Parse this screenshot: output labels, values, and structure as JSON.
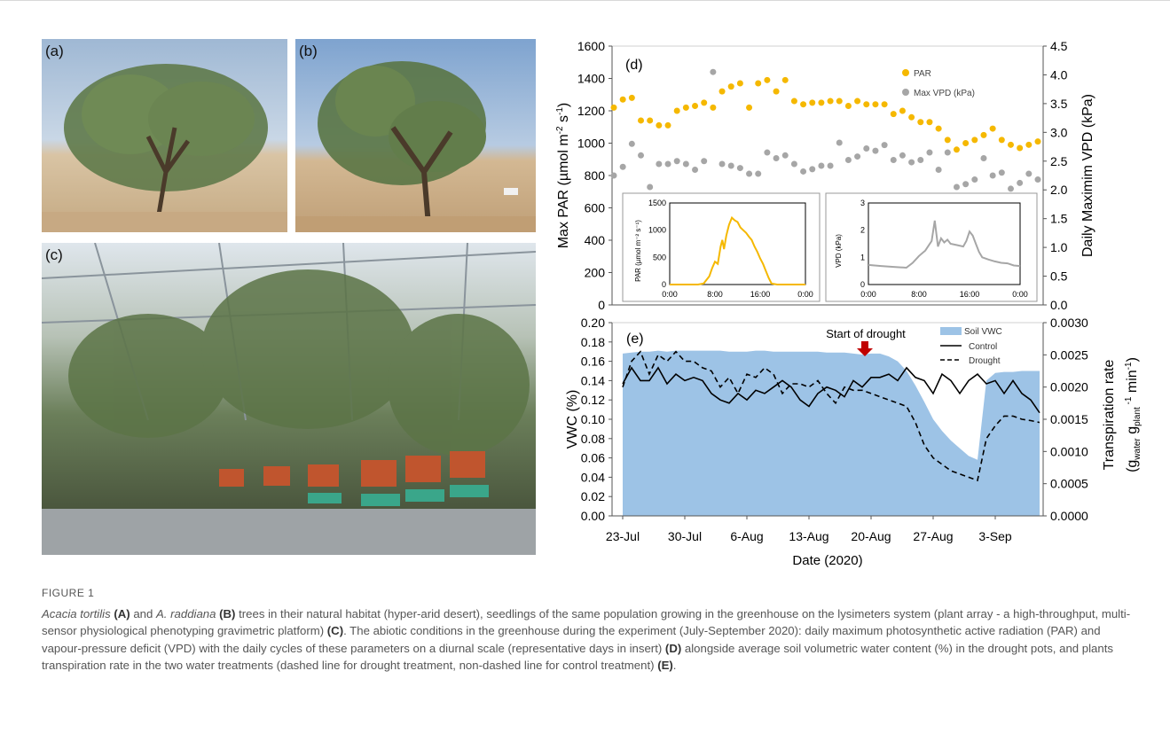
{
  "figure_label": "FIGURE 1",
  "caption": {
    "s1_italic": "Acacia tortilis",
    "s1_b1": "(A)",
    "s1_t2": " and ",
    "s1_italic2": "A. raddiana",
    "s1_b2": "(B)",
    "s1_t3": " trees in their natural habitat (hyper-arid desert), seedlings of the same population growing in the greenhouse on the lysimeters system (plant array - a high-throughput, multi-sensor physiological phenotyping gravimetric platform) ",
    "s1_b3": "(C)",
    "s1_t4": ". The abiotic conditions in the greenhouse during the experiment (July-September 2020): daily maximum photosynthetic active radiation (PAR) and vapour-pressure deficit (VPD) with the daily cycles of these parameters on a diurnal scale (representative days in insert) ",
    "s1_b4": "(D)",
    "s1_t5": " alongside average soil volumetric water content (%) in the drought pots, and plants transpiration rate in the two water treatments (dashed line for drought treatment, non-dashed line for control treatment) ",
    "s1_b5": "(E)",
    "s1_t6": "."
  },
  "photos": [
    {
      "label": "(a)",
      "description": "tree in natural habitat"
    },
    {
      "label": "(b)",
      "description": "tree in natural habitat"
    },
    {
      "label": "(c)",
      "description": "greenhouse seedlings on lysimeters"
    }
  ],
  "colors": {
    "par": "#f5b800",
    "vpd": "#a6a6a6",
    "vwc": "#9dc3e6",
    "line": "#000000",
    "axis": "#555555"
  },
  "chart_data": [
    {
      "panel": "(d)",
      "type": "scatter",
      "ylabel_left": "Max PAR (µmol m⁻² s⁻¹)",
      "ylabel_right": "Daily Maximim VPD (kPa)",
      "ylim_left": [
        0,
        1600
      ],
      "ylim_right": [
        0,
        4.5
      ],
      "yticks_left": [
        "0",
        "200",
        "400",
        "600",
        "800",
        "1000",
        "1200",
        "1400",
        "1600"
      ],
      "yticks_right": [
        "0.0",
        "0.5",
        "1.0",
        "1.5",
        "2.0",
        "2.5",
        "3.0",
        "3.5",
        "4.0",
        "4.5"
      ],
      "x": [
        0,
        1,
        2,
        3,
        4,
        5,
        6,
        7,
        8,
        9,
        10,
        11,
        12,
        13,
        14,
        15,
        16,
        17,
        18,
        19,
        20,
        21,
        22,
        23,
        24,
        25,
        26,
        27,
        28,
        29,
        30,
        31,
        32,
        33,
        34,
        35,
        36,
        37,
        38,
        39,
        40,
        41,
        42,
        43,
        44,
        45,
        46,
        47
      ],
      "series": [
        {
          "name": "PAR",
          "axis": "left",
          "values": [
            1220,
            1270,
            1280,
            1140,
            1140,
            1110,
            1110,
            1200,
            1220,
            1230,
            1250,
            1220,
            1320,
            1350,
            1370,
            1220,
            1370,
            1390,
            1320,
            1390,
            1260,
            1240,
            1250,
            1250,
            1260,
            1260,
            1230,
            1260,
            1240,
            1240,
            1240,
            1180,
            1200,
            1160,
            1130,
            1130,
            1090,
            1020,
            960,
            1000,
            1020,
            1050,
            1090,
            1020,
            990,
            970,
            990,
            1010
          ]
        },
        {
          "name": "Max VPD (kPa)",
          "axis": "right",
          "values": [
            2.25,
            2.4,
            2.8,
            2.6,
            2.05,
            2.45,
            2.45,
            2.5,
            2.45,
            2.35,
            2.5,
            4.05,
            2.45,
            2.42,
            2.38,
            2.28,
            2.28,
            2.65,
            2.55,
            2.6,
            2.45,
            2.32,
            2.36,
            2.42,
            2.42,
            2.82,
            2.52,
            2.58,
            2.72,
            2.68,
            2.78,
            2.52,
            2.6,
            2.48,
            2.52,
            2.65,
            2.35,
            2.65,
            2.05,
            2.1,
            2.18,
            2.55,
            2.25,
            2.3,
            2.02,
            2.12,
            2.28,
            2.18
          ]
        }
      ]
    },
    {
      "panel": "inset-par",
      "type": "line",
      "ylabel": "PAR (µmol m⁻² s⁻¹)",
      "xticks": [
        "0:00",
        "8:00",
        "16:00",
        "0:00"
      ],
      "yticks": [
        "0",
        "500",
        "1000",
        "1500"
      ],
      "ylim": [
        0,
        1500
      ],
      "x_hours": [
        0,
        5,
        6,
        7,
        7.5,
        8,
        8.5,
        9,
        9.3,
        9.6,
        10,
        10.5,
        11,
        11.5,
        12,
        12.5,
        13,
        13.5,
        14,
        14.5,
        15,
        15.5,
        16,
        16.5,
        17,
        17.5,
        18,
        19,
        24
      ],
      "values": [
        0,
        0,
        20,
        150,
        300,
        420,
        380,
        700,
        820,
        650,
        900,
        1100,
        1230,
        1180,
        1150,
        1050,
        1000,
        950,
        880,
        820,
        700,
        600,
        480,
        380,
        250,
        120,
        20,
        0,
        0
      ]
    },
    {
      "panel": "inset-vpd",
      "type": "line",
      "ylabel": "VPD (kPa)",
      "xticks": [
        "0:00",
        "8:00",
        "16:00",
        "0:00"
      ],
      "yticks": [
        "0",
        "1",
        "2",
        "3"
      ],
      "ylim": [
        0,
        3
      ],
      "x_hours": [
        0,
        2,
        4,
        6,
        7,
        8,
        9,
        10,
        10.5,
        11,
        11.5,
        12,
        12.5,
        13,
        14,
        15,
        15.5,
        16,
        16.5,
        17,
        17.5,
        18,
        19,
        20,
        21,
        22,
        23,
        24
      ],
      "values": [
        0.72,
        0.68,
        0.65,
        0.62,
        0.8,
        1.05,
        1.25,
        1.6,
        2.35,
        1.4,
        1.7,
        1.55,
        1.65,
        1.5,
        1.45,
        1.4,
        1.6,
        1.95,
        1.8,
        1.5,
        1.2,
        1.0,
        0.92,
        0.85,
        0.8,
        0.78,
        0.7,
        0.68
      ]
    },
    {
      "panel": "(e)",
      "type": "area",
      "xlabel": "Date (2020)",
      "ylabel_left": "VWC (%)",
      "ylabel_right": "Transpiration rate (gwater gplant⁻¹ min⁻¹)",
      "ylabel_right_parts": {
        "a": "Transpiration rate",
        "b1": "(g",
        "b_sub1": "water",
        "b2": " g",
        "b_sub2": "plant",
        "b_sup": " -1",
        "b3": " min",
        "b_sup2": "-1",
        "b4": ")"
      },
      "annotation": "Start of drought",
      "ylim_left": [
        0,
        0.2
      ],
      "ylim_right": [
        0,
        0.003
      ],
      "yticks_left": [
        "0.00",
        "0.02",
        "0.04",
        "0.06",
        "0.08",
        "0.10",
        "0.12",
        "0.14",
        "0.16",
        "0.18",
        "0.20"
      ],
      "yticks_right": [
        "0.0000",
        "0.0005",
        "0.0010",
        "0.0015",
        "0.0020",
        "0.0025",
        "0.0030"
      ],
      "xticks": [
        "23-Jul",
        "30-Jul",
        "6-Aug",
        "13-Aug",
        "20-Aug",
        "27-Aug",
        "3-Sep"
      ],
      "x": [
        0,
        1,
        2,
        3,
        4,
        5,
        6,
        7,
        8,
        9,
        10,
        11,
        12,
        13,
        14,
        15,
        16,
        17,
        18,
        19,
        20,
        21,
        22,
        23,
        24,
        25,
        26,
        27,
        28,
        29,
        30,
        31,
        32,
        33,
        34,
        35,
        36,
        37,
        38,
        39,
        40,
        41,
        42,
        43,
        44,
        45,
        46,
        47
      ],
      "series": [
        {
          "name": "Soil VWC",
          "axis": "left",
          "values": [
            0.168,
            0.169,
            0.17,
            0.17,
            0.171,
            0.17,
            0.171,
            0.171,
            0.171,
            0.171,
            0.171,
            0.171,
            0.17,
            0.17,
            0.17,
            0.171,
            0.171,
            0.17,
            0.17,
            0.17,
            0.17,
            0.17,
            0.17,
            0.169,
            0.169,
            0.169,
            0.168,
            0.167,
            0.168,
            0.168,
            0.165,
            0.16,
            0.15,
            0.135,
            0.118,
            0.1,
            0.088,
            0.078,
            0.07,
            0.062,
            0.058,
            0.14,
            0.148,
            0.149,
            0.149,
            0.15,
            0.15,
            0.15
          ]
        },
        {
          "name": "Control",
          "axis": "right",
          "values": [
            0.00205,
            0.0023,
            0.0021,
            0.0021,
            0.0023,
            0.00205,
            0.0022,
            0.0021,
            0.00215,
            0.0021,
            0.0019,
            0.0018,
            0.00175,
            0.0019,
            0.0018,
            0.00195,
            0.0019,
            0.002,
            0.0021,
            0.002,
            0.0018,
            0.0017,
            0.0019,
            0.002,
            0.00195,
            0.00185,
            0.0021,
            0.002,
            0.00215,
            0.00215,
            0.0022,
            0.0021,
            0.0023,
            0.00215,
            0.0021,
            0.0019,
            0.0022,
            0.0021,
            0.0019,
            0.0021,
            0.0022,
            0.00205,
            0.0021,
            0.0019,
            0.0021,
            0.0019,
            0.0018,
            0.0016
          ]
        },
        {
          "name": "Drought",
          "axis": "right",
          "values": [
            0.002,
            0.0024,
            0.00255,
            0.0022,
            0.0025,
            0.0024,
            0.00255,
            0.0024,
            0.0024,
            0.0023,
            0.00225,
            0.002,
            0.00215,
            0.0019,
            0.0022,
            0.00215,
            0.0023,
            0.0022,
            0.0019,
            0.00205,
            0.00205,
            0.002,
            0.0021,
            0.0019,
            0.00175,
            0.002,
            0.00195,
            0.00195,
            0.0019,
            0.00185,
            0.0018,
            0.00175,
            0.0017,
            0.00145,
            0.0011,
            0.0009,
            0.0008,
            0.0007,
            0.00065,
            0.0006,
            0.00055,
            0.0012,
            0.0014,
            0.00155,
            0.00155,
            0.0015,
            0.00148,
            0.00145
          ]
        }
      ]
    }
  ]
}
